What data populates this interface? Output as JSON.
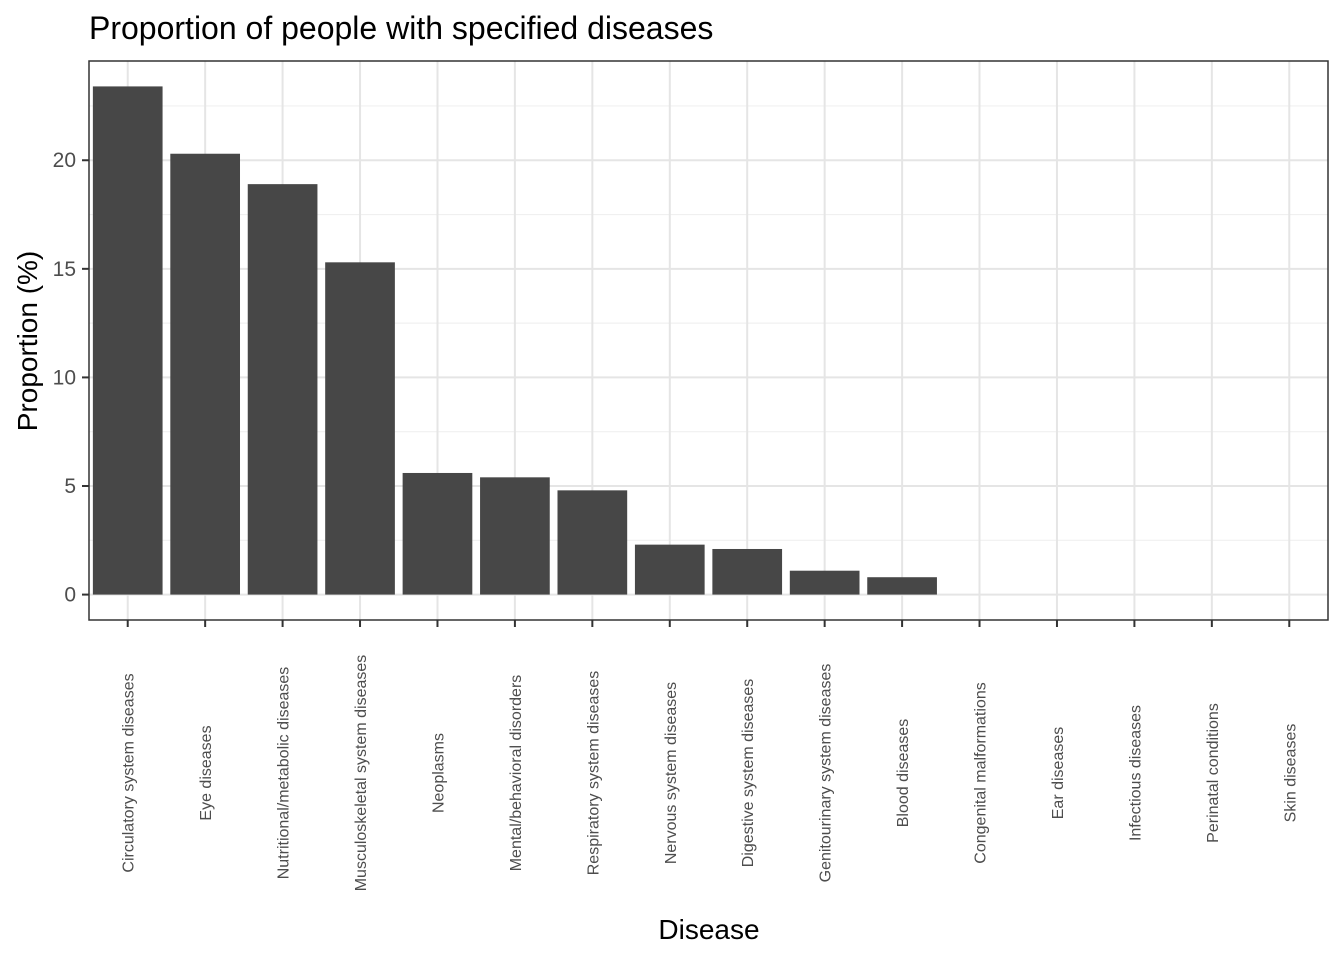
{
  "chart_data": {
    "type": "bar",
    "title": "Proportion of people with specified diseases",
    "xlabel": "Disease",
    "ylabel": "Proportion (%)",
    "categories": [
      "Circulatory system diseases",
      "Eye diseases",
      "Nutritional/metabolic diseases",
      "Musculoskeletal system diseases",
      "Neoplasms",
      "Mental/behavioral disorders",
      "Respiratory system diseases",
      "Nervous system diseases",
      "Digestive system diseases",
      "Genitourinary system diseases",
      "Blood diseases",
      "Congenital malformations",
      "Ear diseases",
      "Infectious diseases",
      "Perinatal conditions",
      "Skin diseases"
    ],
    "values": [
      23.4,
      20.3,
      18.9,
      15.3,
      5.6,
      5.4,
      4.8,
      2.3,
      2.1,
      1.1,
      0.8,
      0,
      0,
      0,
      0,
      0
    ],
    "yticks": [
      0,
      5,
      10,
      15,
      20
    ],
    "ylim": [
      -1.17,
      24.57
    ],
    "grid": true,
    "legend": "none",
    "colors": {
      "bar": "#474747",
      "panel_border": "#333333",
      "grid_major": "#e5e5e5",
      "grid_minor": "#f0f0f0",
      "axis_text": "#4d4d4d",
      "title_text": "#000000"
    }
  }
}
